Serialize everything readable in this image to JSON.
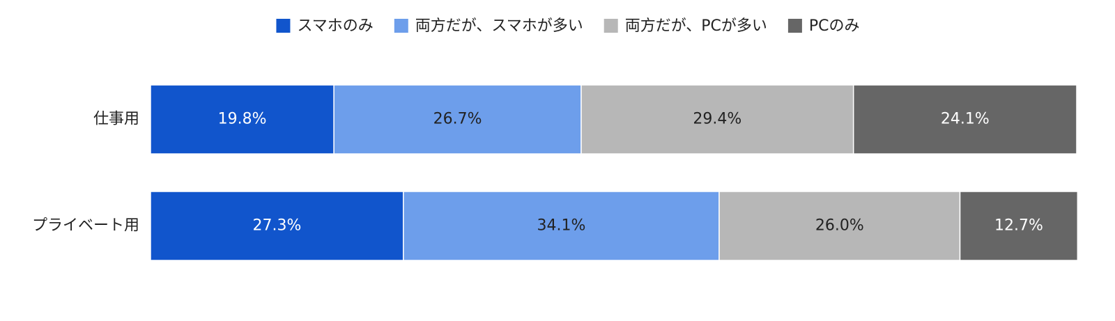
{
  "chart_data": {
    "type": "stacked_barh",
    "categories": [
      "仕事用",
      "プライベート用"
    ],
    "series": [
      {
        "name": "スマホのみ",
        "color": "#1155cc",
        "values": [
          19.8,
          27.3
        ],
        "value_labels": [
          "19.8%",
          "27.3%"
        ]
      },
      {
        "name": "両方だが、スマホが多い",
        "color": "#6d9eeb",
        "values": [
          26.7,
          34.1
        ],
        "value_labels": [
          "26.7%",
          "34.1%"
        ]
      },
      {
        "name": "両方だが、PCが多い",
        "color": "#b7b7b7",
        "values": [
          29.4,
          26.0
        ],
        "value_labels": [
          "29.4%",
          "26.0%"
        ]
      },
      {
        "name": "PCのみ",
        "color": "#666666",
        "values": [
          24.1,
          12.7
        ],
        "value_labels": [
          "24.1%",
          "12.7%"
        ]
      }
    ],
    "xlim": [
      0,
      100
    ],
    "legend": "top"
  }
}
